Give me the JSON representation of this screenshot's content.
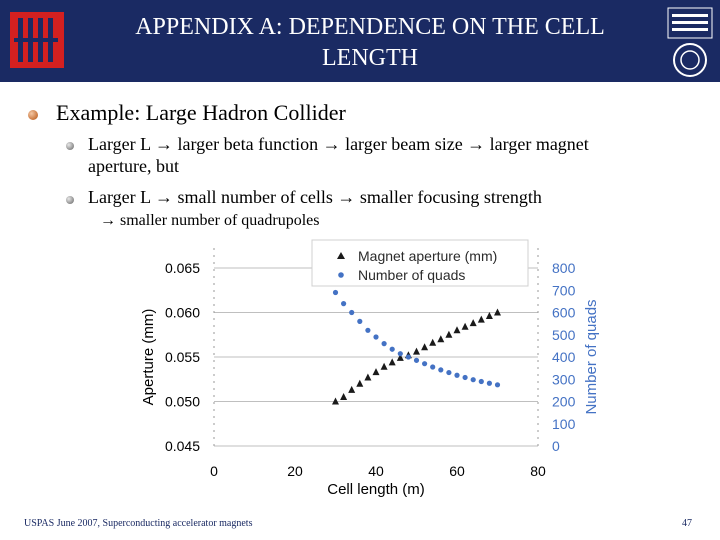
{
  "header": {
    "title_line1": "APPENDIX A: DEPENDENCE ON THE CELL",
    "title_line2": "LENGTH",
    "bg_color": "#1a2a63"
  },
  "bullets": {
    "level1": "Example: Large Hadron Collider",
    "level2_a_line1": "Larger L → larger beta function  → larger beam size → larger magnet",
    "level2_a_line2": "aperture, but",
    "level2_b": "Larger L → small number of cells → smaller focusing strength",
    "level3": "→ smaller number of quadrupoles"
  },
  "footer": {
    "left": "USPAS June 2007,  Superconducting accelerator magnets",
    "page": "47"
  },
  "chart_data": {
    "type": "scatter",
    "xlabel": "Cell length (m)",
    "ylabel_left": "Aperture (mm)",
    "ylabel_right": "Number of quads",
    "xlim": [
      0,
      80
    ],
    "ylim_left": [
      0.045,
      0.065
    ],
    "ylim_right": [
      0,
      800
    ],
    "x_ticks": [
      "0",
      "20",
      "40",
      "60",
      "80"
    ],
    "y_left_ticks": [
      "0.045",
      "0.050",
      "0.055",
      "0.060",
      "0.065"
    ],
    "y_right_ticks": [
      "0",
      "100",
      "200",
      "300",
      "400",
      "500",
      "600",
      "700",
      "800"
    ],
    "legend_position": "top",
    "series": [
      {
        "name": "Magnet aperture (mm)",
        "axis": "left",
        "marker": "triangle",
        "color": "#1a1a1a",
        "x": [
          30,
          32,
          34,
          36,
          38,
          40,
          42,
          44,
          46,
          48,
          50,
          52,
          54,
          56,
          58,
          60,
          62,
          64,
          66,
          68,
          70
        ],
        "y": [
          0.05,
          0.0505,
          0.0513,
          0.052,
          0.0527,
          0.0533,
          0.0539,
          0.0544,
          0.0549,
          0.0552,
          0.0556,
          0.0561,
          0.0566,
          0.057,
          0.0575,
          0.058,
          0.0584,
          0.0588,
          0.0592,
          0.0596,
          0.06
        ]
      },
      {
        "name": "Number of quads",
        "axis": "right",
        "marker": "circle",
        "color": "#4472c4",
        "x": [
          30,
          32,
          34,
          36,
          38,
          40,
          42,
          44,
          46,
          48,
          50,
          52,
          54,
          56,
          58,
          60,
          62,
          64,
          66,
          68,
          70
        ],
        "y": [
          690,
          640,
          600,
          560,
          520,
          490,
          460,
          435,
          415,
          400,
          385,
          370,
          355,
          342,
          330,
          318,
          308,
          298,
          290,
          282,
          275
        ]
      }
    ]
  }
}
